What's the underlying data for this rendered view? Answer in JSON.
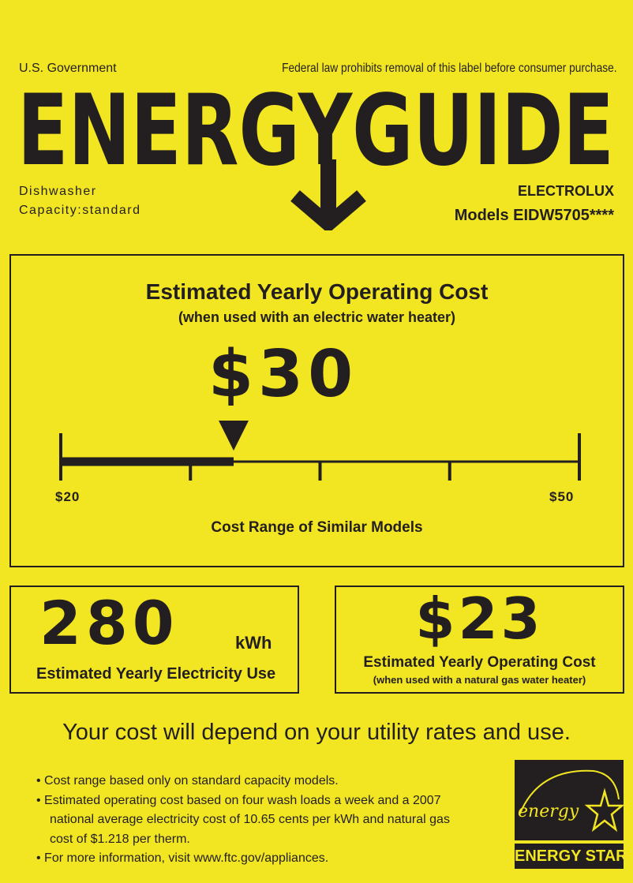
{
  "header": {
    "gov_label": "U.S. Government",
    "federal_notice": "Federal law prohibits removal of this label before consumer purchase.",
    "title": "ENERGYGUIDE",
    "appliance_type": "Dishwasher",
    "capacity": "Capacity:standard",
    "brand": "ELECTROLUX",
    "models": "Models EIDW5705****"
  },
  "cost_box": {
    "title": "Estimated Yearly Operating Cost",
    "subtitle": "(when used with an electric water heater)",
    "cost": "$30",
    "scale_min_label": "$20",
    "scale_max_label": "$50",
    "scale_min": 20,
    "scale_max": 50,
    "value": 30,
    "range_caption": "Cost Range of Similar Models"
  },
  "electricity_box": {
    "value": "280",
    "unit": "kWh",
    "label": "Estimated Yearly Electricity Use"
  },
  "gas_box": {
    "value": "$23",
    "label": "Estimated Yearly Operating Cost",
    "sublabel": "(when used with a natural gas water heater)"
  },
  "footer": {
    "headline": "Your cost will depend on your utility rates and use.",
    "bullets": [
      "Cost range based only on standard capacity models.",
      "Estimated operating cost based on four wash loads a week and a 2007",
      "national average electricity cost of 10.65 cents per kWh and natural gas",
      "cost of $1.218 per therm.",
      "For more information, visit www.ftc.gov/appliances."
    ],
    "logo_script": "energy",
    "logo_label": "ENERGY STAR"
  },
  "colors": {
    "background": "#f2e521",
    "ink": "#231f20"
  }
}
